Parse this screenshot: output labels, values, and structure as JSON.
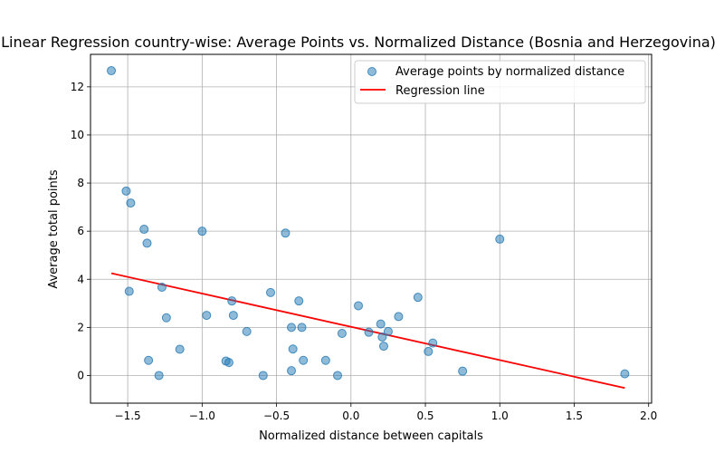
{
  "chart_data": {
    "type": "scatter",
    "title": "Linear Regression country-wise: Average Points vs. Normalized Distance (Bosnia and Herzegovina)",
    "xlabel": "Normalized distance between capitals",
    "ylabel": "Average total points",
    "xlim": [
      -1.75,
      2.02
    ],
    "ylim": [
      -1.15,
      13.35
    ],
    "xticks": [
      -1.5,
      -1.0,
      -0.5,
      0.0,
      0.5,
      1.0,
      1.5,
      2.0
    ],
    "xtick_labels": [
      "−1.5",
      "−1.0",
      "−0.5",
      "0.0",
      "0.5",
      "1.0",
      "1.5",
      "2.0"
    ],
    "yticks": [
      0,
      2,
      4,
      6,
      8,
      10,
      12
    ],
    "ytick_labels": [
      "0",
      "2",
      "4",
      "6",
      "8",
      "10",
      "12"
    ],
    "grid": true,
    "legend_position": "top-right",
    "series": [
      {
        "name": "Average points by normalized distance",
        "kind": "scatter",
        "color": "#1f77b4",
        "x": [
          -1.61,
          -1.51,
          -1.48,
          -1.49,
          -1.39,
          -1.36,
          -1.37,
          -1.29,
          -1.27,
          -1.24,
          -1.15,
          -1.0,
          -0.97,
          -0.84,
          -0.82,
          -0.8,
          -0.79,
          -0.7,
          -0.59,
          -0.54,
          -0.44,
          -0.4,
          -0.4,
          -0.39,
          -0.35,
          -0.33,
          -0.32,
          -0.17,
          -0.09,
          -0.06,
          0.05,
          0.12,
          0.2,
          0.21,
          0.22,
          0.25,
          0.32,
          0.45,
          0.52,
          0.55,
          0.75,
          1.0,
          1.84
        ],
        "y": [
          12.67,
          7.67,
          7.17,
          3.5,
          6.08,
          0.63,
          5.5,
          0.0,
          3.67,
          2.4,
          1.09,
          6.0,
          2.5,
          0.6,
          0.54,
          3.1,
          2.5,
          1.83,
          0.0,
          3.45,
          5.92,
          2.0,
          0.2,
          1.1,
          3.1,
          2.0,
          0.63,
          0.63,
          0.0,
          1.75,
          2.9,
          1.8,
          2.14,
          1.6,
          1.22,
          1.83,
          2.45,
          3.25,
          1.0,
          1.35,
          0.18,
          5.67,
          0.07
        ]
      },
      {
        "name": "Regression line",
        "kind": "line",
        "color": "#ff0000",
        "x": [
          -1.61,
          1.84
        ],
        "y": [
          4.25,
          -0.52
        ]
      }
    ]
  }
}
